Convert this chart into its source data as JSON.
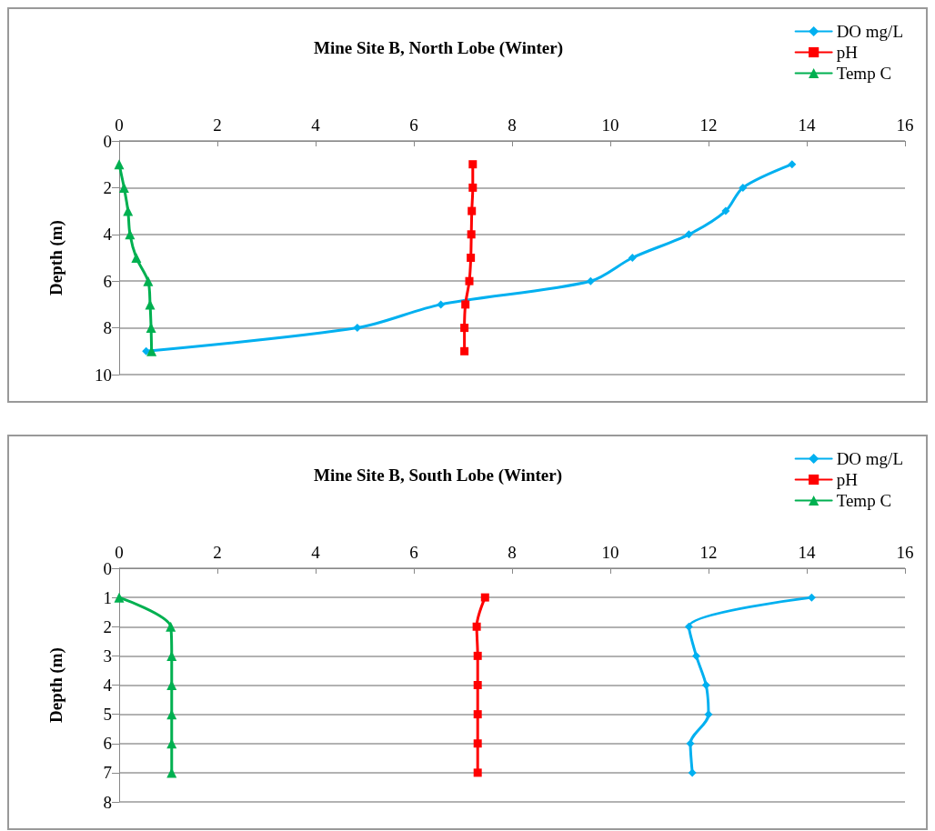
{
  "chart_data": [
    {
      "type": "line",
      "title": "Mine Site B, North Lobe (Winter)",
      "ylabel": "Depth (m)",
      "xlim": [
        0,
        16
      ],
      "xticks": [
        0,
        2,
        4,
        6,
        8,
        10,
        12,
        14,
        16
      ],
      "ylim": [
        10,
        0
      ],
      "yticks": [
        0,
        2,
        4,
        6,
        8,
        10
      ],
      "grid": "y",
      "legend": "top right",
      "series": [
        {
          "name": "DO mg/L",
          "color": "#00b0f0",
          "marker": "diamond",
          "x": [
            13.7,
            12.7,
            12.35,
            11.6,
            10.45,
            9.6,
            6.55,
            4.85,
            0.55
          ],
          "values": [
            1,
            2,
            3,
            4,
            5,
            6,
            7,
            8,
            9
          ]
        },
        {
          "name": "pH",
          "color": "#ff0000",
          "marker": "square",
          "x": [
            7.2,
            7.2,
            7.18,
            7.17,
            7.16,
            7.13,
            7.05,
            7.03,
            7.03
          ],
          "values": [
            1,
            2,
            3,
            4,
            5,
            6,
            7,
            8,
            9
          ]
        },
        {
          "name": "Temp C",
          "color": "#00b050",
          "marker": "triangle",
          "x": [
            0,
            0.1,
            0.18,
            0.22,
            0.35,
            0.59,
            0.63,
            0.65,
            0.66
          ],
          "values": [
            1,
            2,
            3,
            4,
            5,
            6,
            7,
            8,
            9
          ]
        }
      ]
    },
    {
      "type": "line",
      "title": "Mine Site B, South Lobe (Winter)",
      "ylabel": "Depth (m)",
      "xlim": [
        0,
        16
      ],
      "xticks": [
        0,
        2,
        4,
        6,
        8,
        10,
        12,
        14,
        16
      ],
      "ylim": [
        8,
        0
      ],
      "yticks": [
        0,
        1,
        2,
        3,
        4,
        5,
        6,
        7,
        8
      ],
      "grid": "y",
      "legend": "top right",
      "series": [
        {
          "name": "DO mg/L",
          "color": "#00b0f0",
          "marker": "diamond",
          "x": [
            14.1,
            11.6,
            11.75,
            11.95,
            12.0,
            11.63,
            11.67
          ],
          "values": [
            1,
            2,
            3,
            4,
            5,
            6,
            7
          ]
        },
        {
          "name": "pH",
          "color": "#ff0000",
          "marker": "square",
          "x": [
            7.45,
            7.28,
            7.3,
            7.3,
            7.3,
            7.3,
            7.3
          ],
          "values": [
            1,
            2,
            3,
            4,
            5,
            6,
            7
          ]
        },
        {
          "name": "Temp C",
          "color": "#00b050",
          "marker": "triangle",
          "x": [
            0,
            1.05,
            1.07,
            1.07,
            1.07,
            1.07,
            1.07
          ],
          "values": [
            1,
            2,
            3,
            4,
            5,
            6,
            7
          ]
        }
      ]
    }
  ]
}
